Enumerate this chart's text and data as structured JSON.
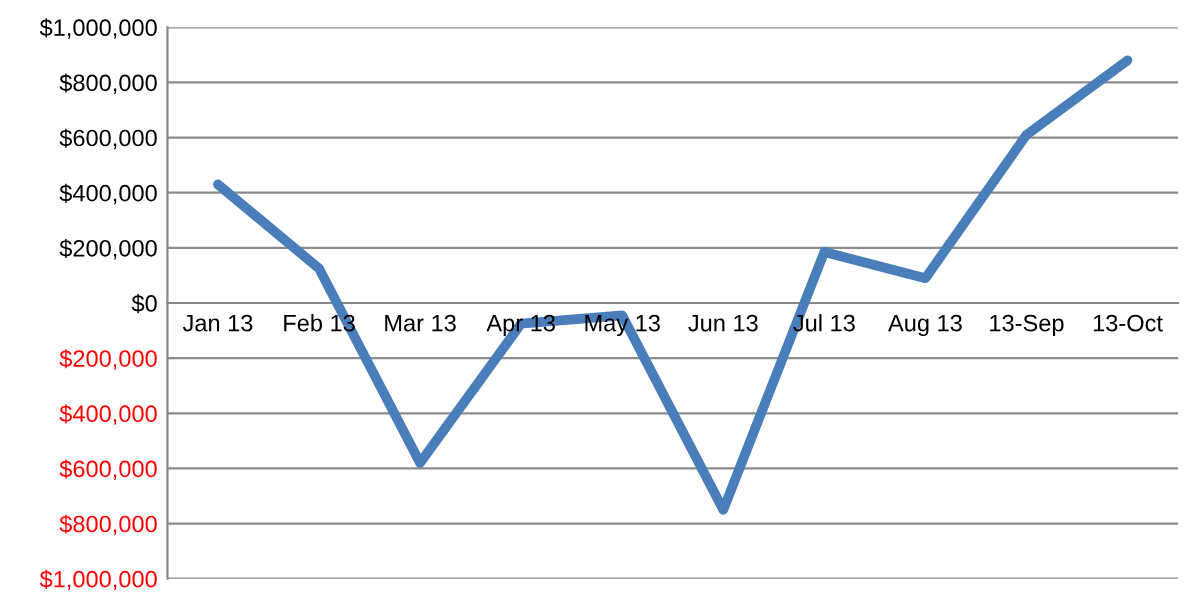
{
  "chart_data": {
    "type": "line",
    "categories": [
      "Jan 13",
      "Feb 13",
      "Mar 13",
      "Apr 13",
      "May 13",
      "Jun 13",
      "Jul 13",
      "Aug 13",
      "13-Sep",
      "13-Oct"
    ],
    "series": [
      {
        "color": "#4a7ebb",
        "values": [
          430000,
          125000,
          -580000,
          -75000,
          -45000,
          -750000,
          185000,
          90000,
          610000,
          880000
        ]
      }
    ],
    "ylim": [
      -1000000,
      1000000
    ],
    "yticks": [
      {
        "value": -1000000,
        "label": "$1,000,000"
      },
      {
        "value": -800000,
        "label": "$800,000"
      },
      {
        "value": -600000,
        "label": "$600,000"
      },
      {
        "value": -400000,
        "label": "$400,000"
      },
      {
        "value": -200000,
        "label": "$200,000"
      },
      {
        "value": 0,
        "label": "$0"
      },
      {
        "value": 200000,
        "label": "$200,000"
      },
      {
        "value": 400000,
        "label": "$400,000"
      },
      {
        "value": 600000,
        "label": "$600,000"
      },
      {
        "value": 800000,
        "label": "$800,000"
      },
      {
        "value": 1000000,
        "label": "$1,000,000"
      }
    ],
    "grid": "y",
    "legend": false,
    "marker": "none",
    "line_style": "solid"
  }
}
